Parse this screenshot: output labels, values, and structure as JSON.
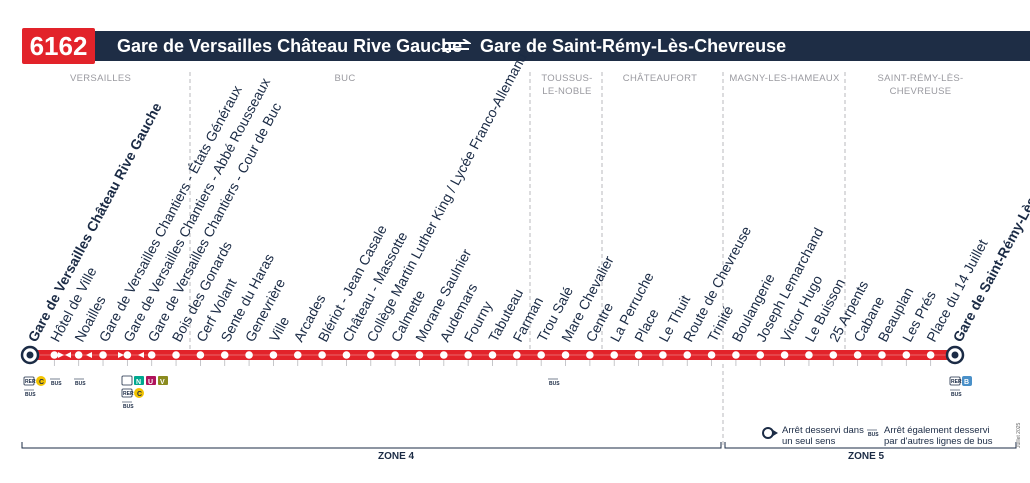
{
  "header": {
    "line_number": "6162",
    "from": "Gare de Versailles Château Rive Gauche",
    "to": "Gare de Saint-Rémy-Lès-Chevreuse"
  },
  "communes": [
    "VERSAILLES",
    "BUC",
    "TOUSSUS-\nLE-NOBLE",
    "CHÂTEAUFORT",
    "MAGNY-LES-HAMEAUX",
    "SAINT-RÉMY-LÈS-CHEVREUSE"
  ],
  "stops": [
    {
      "name": "Gare de Versailles Château Rive Gauche",
      "terminus": true
    },
    {
      "name": "Hôtel de Ville"
    },
    {
      "name": "Noailles"
    },
    {
      "name": "Gare de Versailles Chantiers - États Généraux"
    },
    {
      "name": "Gare de Versailles Chantiers - Abbé Rousseaux"
    },
    {
      "name": "Gare de Versailles Chantiers - Cour de Buc"
    },
    {
      "name": "Bois des Gonards"
    },
    {
      "name": "Cerf Volant"
    },
    {
      "name": "Sente du Haras"
    },
    {
      "name": "Genevrière"
    },
    {
      "name": "Ville"
    },
    {
      "name": "Arcades"
    },
    {
      "name": "Blériot - Jean Casale"
    },
    {
      "name": "Château - Massotte"
    },
    {
      "name": "Collège Martin Luther King / Lycée Franco-Allemand"
    },
    {
      "name": "Calmette"
    },
    {
      "name": "Morane Saulnier"
    },
    {
      "name": "Audemars"
    },
    {
      "name": "Fourny"
    },
    {
      "name": "Tabuteau"
    },
    {
      "name": "Farman"
    },
    {
      "name": "Trou Salé"
    },
    {
      "name": "Mare Chevalier"
    },
    {
      "name": "Centre"
    },
    {
      "name": "La Perruche"
    },
    {
      "name": "Place"
    },
    {
      "name": "Le Thuit"
    },
    {
      "name": "Route de Chevreuse"
    },
    {
      "name": "Trinité"
    },
    {
      "name": "Boulangerie"
    },
    {
      "name": "Joseph Lemarchand"
    },
    {
      "name": "Victor Hugo"
    },
    {
      "name": "Le Buisson"
    },
    {
      "name": "25 Arpents"
    },
    {
      "name": "Cabane"
    },
    {
      "name": "Beauplan"
    },
    {
      "name": "Les Prés"
    },
    {
      "name": "Place du 14 Juillet"
    },
    {
      "name": "Gare de Saint-Rémy-Lès-Chevreuse",
      "terminus": true
    }
  ],
  "connections": {
    "rer_label": "RER",
    "bus_label": "BUS",
    "rer_c": "C",
    "rer_b": "B",
    "transilien_n": "N",
    "transilien_u": "U",
    "transilien_v": "V",
    "colors": {
      "c": "#f2c300",
      "b": "#4a90c8",
      "n": "#00a88f",
      "u": "#b0135c",
      "v": "#8b8b1f"
    }
  },
  "legend": {
    "one_way": "Arrêt desservi dans\nun seul sens",
    "other_bus": "Arrêt également desservi\npar d'autres lignes de bus",
    "bus_tag": "BUS"
  },
  "zones": {
    "zone4": "ZONE 4",
    "zone5": "ZONE 5"
  },
  "date_note": "Juillet 2025",
  "colors": {
    "line_red": "#e2232a",
    "navy": "#1e2d45",
    "grey": "#b8b8bc"
  }
}
